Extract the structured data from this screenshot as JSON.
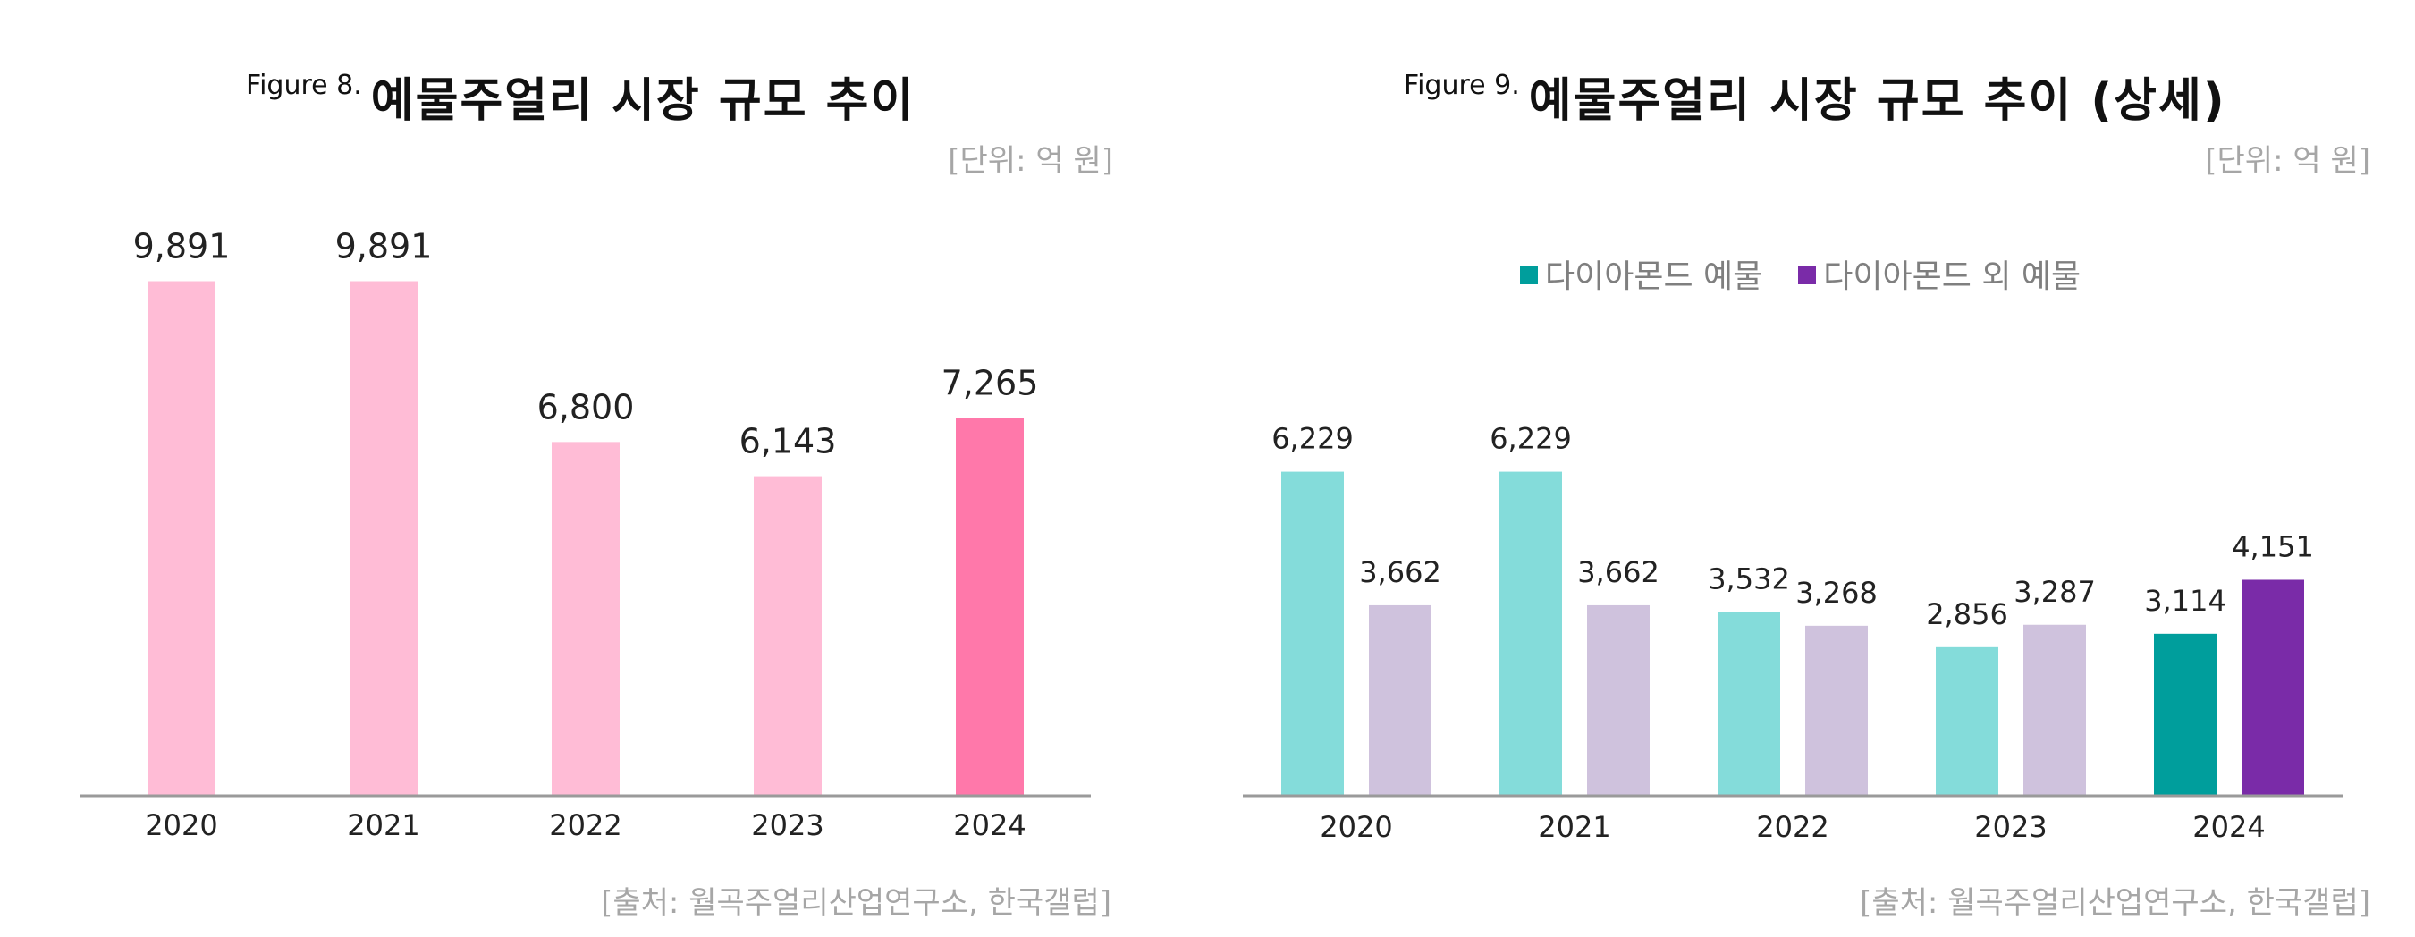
{
  "left": {
    "figure_label": "Figure 8.",
    "title": "예물주얼리 시장 규모 추이",
    "unit": "[단위: 억 원]",
    "source": "[출처: 월곡주얼리산업연구소, 한국갤럽]"
  },
  "right": {
    "figure_label": "Figure 9.",
    "title": "예물주얼리 시장 규모 추이 (상세)",
    "unit": "[단위: 억 원]",
    "source": "[출처: 월곡주얼리산업연구소, 한국갤럽]",
    "legend": [
      "다이아몬드 예물",
      "다이아몬드 외 예물"
    ]
  },
  "colors": {
    "pink_light": "#FFBCD6",
    "pink_dark": "#FF78AA",
    "teal_light": "#84DCDA",
    "teal_dark": "#009E9C",
    "lavender": "#CFC2DD",
    "purple": "#7A2BA8",
    "axis": "#9a9a9a"
  },
  "chart_data": [
    {
      "type": "bar",
      "categories": [
        "2020",
        "2021",
        "2022",
        "2023",
        "2024"
      ],
      "values": [
        9891,
        9891,
        6800,
        6143,
        7265
      ],
      "value_labels": [
        "9,891",
        "9,891",
        "6,800",
        "6,143",
        "7,265"
      ],
      "ylim": [
        0,
        11000
      ],
      "highlight_last": true,
      "grid": false
    },
    {
      "type": "bar",
      "categories": [
        "2020",
        "2021",
        "2022",
        "2023",
        "2024"
      ],
      "series": [
        {
          "name": "다이아몬드 예물",
          "values": [
            6229,
            6229,
            3532,
            2856,
            3114
          ],
          "labels": [
            "6,229",
            "6,229",
            "3,532",
            "2,856",
            "3,114"
          ]
        },
        {
          "name": "다이아몬드 외 예물",
          "values": [
            3662,
            3662,
            3268,
            3287,
            4151
          ],
          "labels": [
            "3,662",
            "3,662",
            "3,268",
            "3,287",
            "4,151"
          ]
        }
      ],
      "ylim": [
        0,
        11000
      ],
      "highlight_last": true,
      "legend_position": "top",
      "grid": false
    }
  ]
}
